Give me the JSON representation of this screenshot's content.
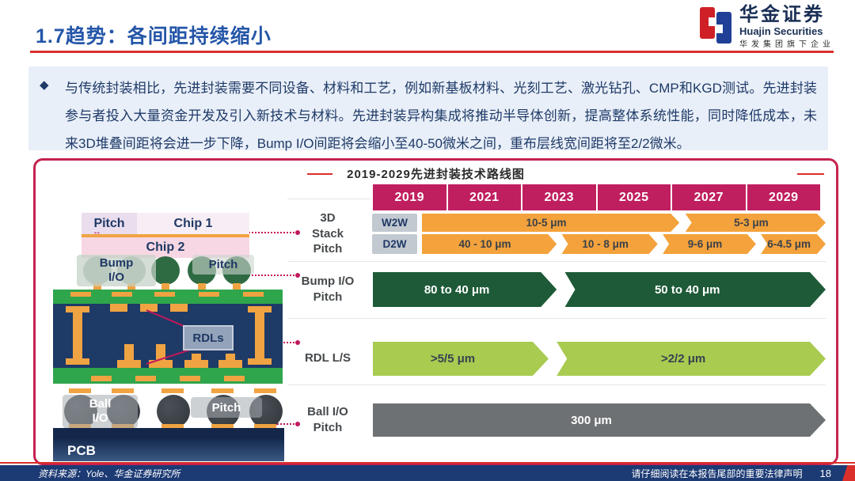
{
  "header": {
    "title": "1.7趋势：各间距持续缩小",
    "logo": {
      "cn": "华金证券",
      "en": "Huajin Securities",
      "sub": "华发集团旗下企业"
    }
  },
  "intro": {
    "bullet": "◆",
    "text": "与传统封装相比，先进封装需要不同设备、材料和工艺，例如新基板材料、光刻工艺、激光钻孔、CMP和KGD测试。先进封装参与者投入大量资金开发及引入新技术与材料。先进封装异构集成将推动半导体创新，提高整体系统性能，同时降低成本，未来3D堆叠间距将会进一步下降，Bump I/O间距将会缩小至40-50微米之间，重布层线宽间距将至2/2微米。"
  },
  "chart": {
    "title": "2019-2029先进封装技术路线图",
    "years": [
      "2019",
      "2021",
      "2023",
      "2025",
      "2027",
      "2029"
    ],
    "rows": [
      {
        "id": "3d-stack",
        "label": "3D\nStack\nPitch",
        "tracks": [
          {
            "tag": "W2W",
            "color": "orange",
            "segments": [
              {
                "text": "10-5 μm",
                "x1": 0.108,
                "x2": 0.677
              },
              {
                "text": "5-3 μm",
                "x1": 0.69,
                "x2": 1
              }
            ]
          },
          {
            "tag": "D2W",
            "color": "orange",
            "segments": [
              {
                "text": "40 - 10 μm",
                "x1": 0.108,
                "x2": 0.406
              },
              {
                "text": "10 - 8 μm",
                "x1": 0.417,
                "x2": 0.629
              },
              {
                "text": "9-6 μm",
                "x1": 0.64,
                "x2": 0.846
              },
              {
                "text": "6-4.5 μm",
                "x1": 0.857,
                "x2": 1
              }
            ]
          }
        ]
      },
      {
        "id": "bump-io",
        "label": "Bump I/O\nPitch",
        "tracks": [
          {
            "tag": null,
            "color": "darkgreen",
            "segments": [
              {
                "text": "80 to 40 μm",
                "x1": 0,
                "x2": 0.406
              },
              {
                "text": "50 to 40 μm",
                "x1": 0.424,
                "x2": 1
              }
            ]
          }
        ]
      },
      {
        "id": "rdl-ls",
        "label": "RDL L/S",
        "tracks": [
          {
            "tag": null,
            "color": "lightgreen",
            "segments": [
              {
                "text": ">5/5 μm",
                "x1": 0,
                "x2": 0.388
              },
              {
                "text": ">2/2 μm",
                "x1": 0.406,
                "x2": 1
              }
            ]
          }
        ]
      },
      {
        "id": "ball-io",
        "label": "Ball I/O\nPitch",
        "tracks": [
          {
            "tag": null,
            "color": "gray",
            "segments": [
              {
                "text": "300 μm",
                "x1": 0,
                "x2": 1
              }
            ]
          }
        ]
      }
    ],
    "colors": {
      "year_header": "#c01f5f",
      "orange": "#f3a23c",
      "darkgreen": "#1e5a38",
      "lightgreen": "#a8cb50",
      "gray": "#6d7173",
      "connector": "#c2185b"
    }
  },
  "diagram": {
    "pitch_top": "Pitch",
    "pitch_arrow": "↔",
    "chip1": "Chip 1",
    "chip2": "Chip 2",
    "bump_label": "Bump\nI/O",
    "pitch_mid": "Pitch",
    "rdls": "RDLs",
    "ball_label": "Ball\nI/O",
    "pitch_bottom": "Pitch",
    "pcb": "PCB"
  },
  "footer": {
    "source": "资料来源：Yole、华金证券研究所",
    "notice": "请仔细阅读在本报告尾部的重要法律声明",
    "page": "18"
  }
}
